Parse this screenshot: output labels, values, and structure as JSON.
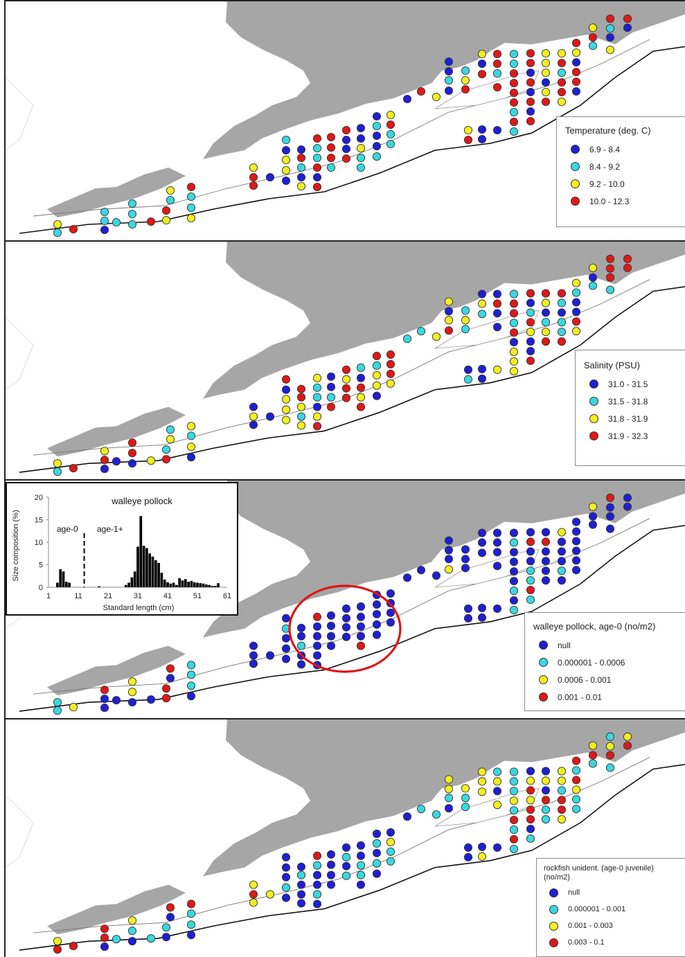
{
  "panels": [
    {
      "legend_title": "Temperature (deg. C)",
      "legend_title_2": "",
      "classes": [
        {
          "label": "6.9 - 8.4",
          "color": "#1f1fd6"
        },
        {
          "label": "8.4 - 9.2",
          "color": "#39d8df"
        },
        {
          "label": "9.2 - 10.0",
          "color": "#f2ee1f"
        },
        {
          "label": "10.0 - 12.3",
          "color": "#e01818"
        }
      ]
    },
    {
      "legend_title": "Salinity (PSU)",
      "legend_title_2": "",
      "classes": [
        {
          "label": "31.0 - 31.5",
          "color": "#1f1fd6"
        },
        {
          "label": "31.5 - 31.8",
          "color": "#39d8df"
        },
        {
          "label": "31.8 - 31.9",
          "color": "#f2ee1f"
        },
        {
          "label": "31.9 - 32.3",
          "color": "#e01818"
        }
      ]
    },
    {
      "legend_title": "walleye pollock, age-0 (no/m2)",
      "legend_title_2": "",
      "classes": [
        {
          "label": "null",
          "color": "#1f1fd6"
        },
        {
          "label": "0.000001 - 0.0006",
          "color": "#39d8df"
        },
        {
          "label": "0.0006 - 0.001",
          "color": "#f2ee1f"
        },
        {
          "label": "0.001 - 0.01",
          "color": "#e01818"
        }
      ]
    },
    {
      "legend_title": "rockfish unident. (age-0 juvenile)",
      "legend_title_2": "(no/m2)",
      "classes": [
        {
          "label": "null",
          "color": "#1f1fd6"
        },
        {
          "label": "0.000001 - 0.001",
          "color": "#39d8df"
        },
        {
          "label": "0.001 - 0.003",
          "color": "#f2ee1f"
        },
        {
          "label": "0.003 - 0.1",
          "color": "#e01818"
        }
      ]
    }
  ],
  "chart_data": {
    "type": "bar",
    "title": "walleye pollock",
    "xlabel": "Standard length (cm)",
    "ylabel": "Size composition (%)",
    "ylim": [
      0,
      20
    ],
    "xlim": [
      1,
      61
    ],
    "yticks": [
      "0",
      "5",
      "10",
      "15",
      "20"
    ],
    "xticks": [
      "1",
      "11",
      "21",
      "31",
      "41",
      "51",
      "61"
    ],
    "annotations": [
      "age-0",
      "age-1+"
    ],
    "divider_x": 13,
    "x": [
      4,
      5,
      6,
      7,
      8,
      18,
      27,
      28,
      29,
      30,
      31,
      32,
      33,
      34,
      35,
      36,
      37,
      38,
      39,
      40,
      41,
      42,
      43,
      44,
      45,
      46,
      47,
      48,
      49,
      50,
      51,
      52,
      53,
      54,
      55,
      56,
      57,
      58
    ],
    "values": [
      1,
      4,
      3.5,
      1.2,
      1,
      0.2,
      0.5,
      1,
      2.2,
      3.5,
      9,
      15.8,
      9.2,
      8.7,
      7.5,
      6.8,
      6,
      5.4,
      3.2,
      1.7,
      1.1,
      0.8,
      1,
      0.5,
      2,
      1.5,
      1.8,
      1.2,
      1.4,
      1.1,
      1,
      0.9,
      0.8,
      0.6,
      0.5,
      0.3,
      0.3,
      0.9
    ],
    "series_color": "#000000"
  },
  "stations": {
    "A": [
      "yell",
      "cyan",
      "red",
      "cyan",
      "cyan",
      "blue",
      "cyan",
      "cyan",
      "cyan",
      "cyan",
      "red",
      "red",
      "yell",
      "yell",
      "cyan",
      "red",
      "cyan",
      "cyan",
      "yell",
      "yell",
      "red",
      "red",
      "blue",
      "cyan",
      "blue",
      "yell",
      "yell",
      "blue",
      "blue",
      "red",
      "cyan",
      "blue",
      "yell",
      "red",
      "cyan",
      "cyan",
      "red",
      "blue",
      "red",
      "red",
      "red",
      "red",
      "cyan",
      "red",
      "blue",
      "blue",
      "red",
      "blue",
      "blue",
      "yell",
      "cyan",
      "cyan",
      "blue",
      "cyan",
      "blue",
      "blue",
      "cyan",
      "yell",
      "red",
      "cyan",
      "cyan",
      "blue",
      "red",
      "yell",
      "blue",
      "blue",
      "cyan",
      "blue",
      "cyan",
      "yell",
      "red",
      "yell",
      "red",
      "yell",
      "blue",
      "red",
      "blue",
      "blue",
      "red",
      "red",
      "cyan",
      "red",
      "blue",
      "cyan",
      "cyan",
      "red",
      "red",
      "red",
      "red",
      "cyan",
      "red",
      "cyan",
      "red",
      "red",
      "blue",
      "red",
      "blue",
      "red",
      "blue",
      "red",
      "yell",
      "yell",
      "yell",
      "blue",
      "yell",
      "red",
      "yell",
      "red",
      "cyan",
      "red",
      "red",
      "yell",
      "red",
      "yell",
      "blue",
      "red",
      "red",
      "blue",
      "yell",
      "red",
      "cyan",
      "red",
      "cyan",
      "blue",
      "yell",
      "red",
      "blue",
      "red",
      "blue",
      "cyan",
      "yell",
      "yell",
      "yell",
      "yell",
      "red",
      "yell",
      "yell",
      "red",
      "yell",
      "blue",
      "yell",
      "blue",
      "blue",
      "cyan",
      "red",
      "blue",
      "blue",
      "yell",
      "blue",
      "blue",
      "cyan",
      "red",
      "yell",
      "blue",
      "red",
      "red",
      "yell",
      "red",
      "cyan",
      "red",
      "red",
      "red",
      "cyan",
      "cyan",
      "cyan",
      "cyan",
      "cyan",
      "cyan",
      "yell"
    ],
    "B": [
      "yell",
      "cyan",
      "red",
      "yell",
      "red",
      "blue",
      "blue",
      "red",
      "red",
      "blue",
      "yell",
      "cyan",
      "red",
      "cyan",
      "yell",
      "yell",
      "cyan",
      "yell",
      "blue",
      "blue",
      "yell",
      "blue",
      "blue",
      "red",
      "blue",
      "yell",
      "yell",
      "yell",
      "red",
      "red",
      "yell",
      "cyan",
      "yell",
      "yell",
      "cyan",
      "cyan",
      "blue",
      "yell",
      "red",
      "blue",
      "blue",
      "cyan",
      "red",
      "red",
      "yell",
      "red",
      "red",
      "cyan",
      "blue",
      "red",
      "yell",
      "red",
      "red",
      "cyan",
      "yell",
      "yell",
      "blue",
      "red",
      "red",
      "red",
      "yell",
      "cyan",
      "cyan",
      "yell",
      "yell",
      "blue",
      "yell",
      "red",
      "cyan",
      "yell",
      "cyan",
      "blue",
      "cyan",
      "blue",
      "yell",
      "cyan",
      "blue",
      "blue",
      "blue",
      "red",
      "blue",
      "blue",
      "yell",
      "cyan",
      "red",
      "red",
      "cyan",
      "red",
      "blue",
      "yell",
      "yell",
      "yell",
      "red",
      "blue",
      "cyan",
      "red",
      "yell",
      "blue",
      "blue",
      "red",
      "red",
      "yell",
      "blue",
      "cyan",
      "yell",
      "red",
      "red",
      "cyan",
      "blue",
      "cyan",
      "cyan",
      "red",
      "yell",
      "cyan",
      "blue",
      "blue",
      "red",
      "yell",
      "yell",
      "blue",
      "cyan",
      "red",
      "red",
      "red",
      "cyan",
      "red",
      "red",
      "yell",
      "cyan",
      "blue",
      "blue",
      "cyan",
      "cyan",
      "yell",
      "cyan",
      "cyan",
      "red",
      "blue",
      "cyan",
      "cyan",
      "blue",
      "cyan",
      "red",
      "yell",
      "yell",
      "cyan",
      "yell",
      "cyan",
      "yell",
      "blue",
      "cyan",
      "blue",
      "red",
      "red",
      "cyan",
      "blue",
      "yell",
      "cyan",
      "yell",
      "red",
      "red",
      "cyan",
      "yell",
      "red",
      "yell",
      "red",
      "blue",
      "yell"
    ],
    "C": [
      "cyan",
      "cyan",
      "yell",
      "red",
      "blue",
      "blue",
      "blue",
      "yell",
      "yell",
      "blue",
      "blue",
      "red",
      "red",
      "red",
      "blue",
      "cyan",
      "cyan",
      "cyan",
      "blue",
      "blue",
      "blue",
      "blue",
      "blue",
      "blue",
      "cyan",
      "blue",
      "blue",
      "blue",
      "blue",
      "blue",
      "cyan",
      "blue",
      "blue",
      "red",
      "blue",
      "blue",
      "blue",
      "blue",
      "blue",
      "blue",
      "blue",
      "blue",
      "blue",
      "blue",
      "blue",
      "blue",
      "blue",
      "blue",
      "blue",
      "blue",
      "blue",
      "red",
      "blue",
      "blue",
      "blue",
      "blue",
      "blue",
      "blue",
      "blue",
      "blue",
      "blue",
      "blue",
      "blue",
      "blue",
      "blue",
      "blue",
      "blue",
      "yell",
      "blue",
      "blue",
      "blue",
      "blue",
      "blue",
      "blue",
      "blue",
      "blue",
      "blue",
      "blue",
      "blue",
      "blue",
      "blue",
      "blue",
      "blue",
      "blue",
      "cyan",
      "blue",
      "blue",
      "blue",
      "blue",
      "cyan",
      "blue",
      "cyan",
      "blue",
      "red",
      "blue",
      "blue",
      "cyan",
      "cyan",
      "red",
      "cyan",
      "blue",
      "red",
      "blue",
      "blue",
      "blue",
      "blue",
      "yell",
      "blue",
      "blue",
      "blue",
      "cyan",
      "blue",
      "blue",
      "blue",
      "blue",
      "blue",
      "blue",
      "blue",
      "yell",
      "blue",
      "blue",
      "red",
      "blue",
      "blue",
      "blue",
      "blue",
      "blue",
      "blue",
      "blue",
      "blue",
      "blue",
      "blue",
      "blue",
      "red",
      "blue",
      "blue",
      "blue",
      "blue",
      "blue",
      "blue",
      "blue",
      "blue",
      "blue",
      "blue",
      "blue",
      "blue",
      "blue",
      "red",
      "yell",
      "blue",
      "blue",
      "red",
      "blue",
      "blue",
      "yell",
      "blue",
      "blue",
      "yell",
      "blue",
      "blue",
      "blue",
      "blue",
      "blue",
      "blue",
      "yell",
      "blue",
      "blue",
      "cyan",
      "yell",
      "blue",
      "blue",
      "cyan",
      "blue"
    ],
    "D": [
      "yell",
      "red",
      "red",
      "red",
      "red",
      "blue",
      "cyan",
      "yell",
      "cyan",
      "blue",
      "cyan",
      "cyan",
      "blue",
      "red",
      "blue",
      "red",
      "cyan",
      "cyan",
      "blue",
      "yell",
      "red",
      "yell",
      "yell",
      "blue",
      "blue",
      "blue",
      "cyan",
      "blue",
      "blue",
      "cyan",
      "blue",
      "blue",
      "blue",
      "red",
      "cyan",
      "blue",
      "blue",
      "cyan",
      "blue",
      "blue",
      "blue",
      "blue",
      "blue",
      "blue",
      "cyan",
      "blue",
      "cyan",
      "blue",
      "blue",
      "cyan",
      "cyan",
      "blue",
      "blue",
      "cyan",
      "blue",
      "cyan",
      "blue",
      "blue",
      "yell",
      "cyan",
      "cyan",
      "blue",
      "cyan",
      "cyan",
      "yell",
      "yell",
      "cyan",
      "blue",
      "yell",
      "cyan",
      "cyan",
      "blue",
      "blue",
      "yell",
      "yell",
      "yell",
      "blue",
      "yell",
      "cyan",
      "yell",
      "blue",
      "yell",
      "blue",
      "cyan",
      "cyan",
      "cyan",
      "yell",
      "cyan",
      "red",
      "cyan",
      "red",
      "cyan",
      "blue",
      "yell",
      "red",
      "yell",
      "red",
      "red",
      "blue",
      "cyan",
      "blue",
      "yell",
      "blue",
      "red",
      "cyan",
      "cyan",
      "yell",
      "yell",
      "cyan",
      "red",
      "red",
      "yell",
      "red",
      "cyan",
      "red",
      "yell",
      "cyan",
      "cyan",
      "yell",
      "red",
      "cyan",
      "cyan",
      "yell",
      "red",
      "cyan",
      "yell",
      "red",
      "red",
      "cyan",
      "yell",
      "yell",
      "yell",
      "red",
      "red",
      "cyan",
      "red",
      "red",
      "yell",
      "cyan",
      "blue",
      "red",
      "yell",
      "red",
      "yell",
      "cyan",
      "yell",
      "cyan",
      "red",
      "cyan",
      "yell",
      "cyan",
      "red",
      "blue",
      "cyan",
      "cyan",
      "red",
      "yell",
      "red",
      "red",
      "cyan",
      "yell",
      "cyan",
      "cyan",
      "red",
      "red",
      "yell",
      "blue",
      "blue",
      "red",
      "cyan"
    ]
  }
}
